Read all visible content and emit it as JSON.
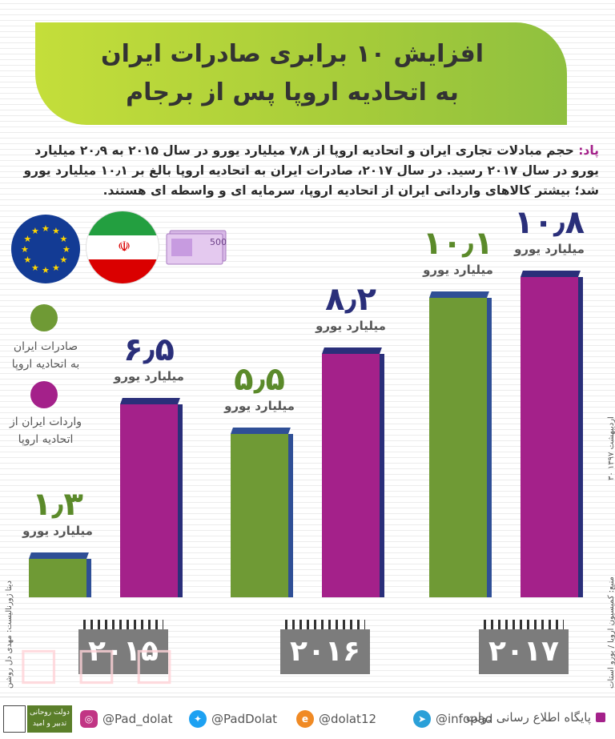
{
  "title": {
    "line1": "افزایش ۱۰ برابری صادرات ایران",
    "line2": "به اتحادیه اروپا پس از برجام"
  },
  "lead": {
    "key": "پاد:",
    "text": "حجم مبادلات تجاری ایران و اتحادیه اروپا از ۷٫۸ میلیارد یورو در سال ۲۰۱۵ به ۲۰٫۹ میلیارد یورو در سال ۲۰۱۷ رسید. در سال ۲۰۱۷، صادرات ایران به اتحادیه اروپا بالغ بر ۱۰٫۱ میلیارد یورو شد؛ بیشتر کالاهای وارداتی ایران از اتحادیه اروپا، سرمایه ای و واسطه ای هستند."
  },
  "legend": {
    "exports": "صادرات ایران به اتحادیه اروپا",
    "imports": "واردات ایران از اتحادیه اروپا"
  },
  "chart_data": {
    "type": "bar",
    "categories": [
      "2015",
      "2016",
      "2017"
    ],
    "category_labels": [
      "۲۰۱۵",
      "۲۰۱۶",
      "۲۰۱۷"
    ],
    "unit_label": "میلیارد یورو",
    "series": [
      {
        "name": "صادرات ایران به اتحادیه اروپا",
        "values": [
          1.3,
          5.5,
          10.1
        ],
        "labels": [
          "۱٫۳",
          "۵٫۵",
          "۱۰٫۱"
        ],
        "color": "#6f9a35"
      },
      {
        "name": "واردات ایران از اتحادیه اروپا",
        "values": [
          6.5,
          8.2,
          10.8
        ],
        "labels": [
          "۶٫۵",
          "۸٫۲",
          "۱۰٫۸"
        ],
        "color": "#a4218a"
      }
    ],
    "ylim": [
      0,
      10.8
    ]
  },
  "colors": {
    "export": "#6f9a35",
    "export_top": "#2f4f96",
    "import": "#a4218a",
    "import_top": "#2a2f7a",
    "year_box": "#7c7c7c",
    "accent": "#a4218a"
  },
  "side_note_right": "۳۰ اردیبهشت ۱۳۹۷",
  "source": "منبع: کمیسیون اروپا / یورو استات",
  "credit": "دیتا ژورنالیست: مهدی دل روشن",
  "footer": {
    "site": "پایگاه اطلاع رسانی دولت",
    "telegram": "@infopad",
    "eitaa": "@dolat12",
    "twitter": "@PadDolat",
    "instagram": "@Pad_dolat",
    "brand": "دولت روحانی",
    "brand_sub": "تدبیر و امید"
  },
  "icons": [
    "eu-flag",
    "iran-flag",
    "euro-banknote",
    "telegram-icon",
    "eitaa-icon",
    "twitter-icon",
    "instagram-icon"
  ]
}
